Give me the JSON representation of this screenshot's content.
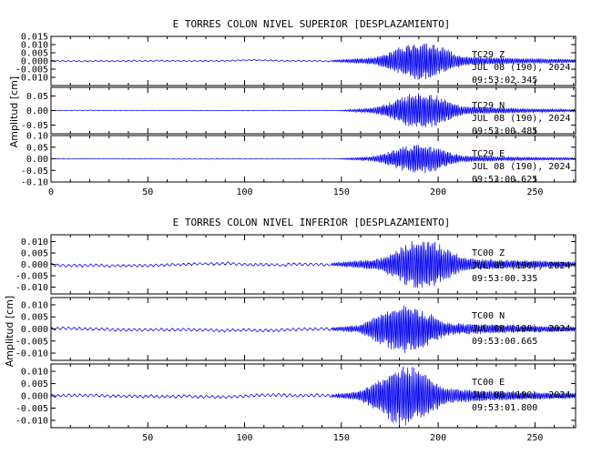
{
  "chart_data": [
    {
      "type": "line",
      "title": "E TORRES COLON NIVEL SUPERIOR [DESPLAZAMIENTO]",
      "ylabel": "Amplitud  [cm]",
      "xlim": [
        0,
        271
      ],
      "x_ticks": [
        "0",
        "50",
        "100",
        "150",
        "200",
        "250"
      ],
      "panels": [
        {
          "station": "TC29",
          "component": "Z",
          "date": "JUL 08 (190), 2024",
          "time": "09:53:02.345",
          "ylim": [
            -0.015,
            0.015
          ],
          "y_ticks": [
            "0.015",
            "0.010",
            "0.005",
            "0.000",
            "-0.005",
            "-0.010"
          ],
          "pre_amp": 0.0004,
          "motion_amp": 0.012,
          "motion_onset": 145,
          "peak_time": 191
        },
        {
          "station": "TC29",
          "component": "N",
          "date": "JUL 08 (190), 2024",
          "time": "09:53:00.485",
          "ylim": [
            -0.08,
            0.08
          ],
          "y_ticks": [
            "0.05",
            "0.00",
            "-0.05"
          ],
          "pre_amp": 0.0008,
          "motion_amp": 0.065,
          "motion_onset": 148,
          "peak_time": 191
        },
        {
          "station": "TC29",
          "component": "E",
          "date": "JUL 08 (190), 2024",
          "time": "09:53:00.625",
          "ylim": [
            -0.1,
            0.1
          ],
          "y_ticks": [
            "0.10",
            "0.05",
            "0.00",
            "-0.05",
            "-0.10"
          ],
          "pre_amp": 0.001,
          "motion_amp": 0.065,
          "motion_onset": 148,
          "peak_time": 190
        }
      ]
    },
    {
      "type": "line",
      "title": "E TORRES COLON NIVEL INFERIOR [DESPLAZAMIENTO]",
      "ylabel": "Amplitud  [cm]",
      "xlim": [
        0,
        271
      ],
      "x_ticks": [
        "50",
        "100",
        "150",
        "200",
        "250"
      ],
      "panels": [
        {
          "station": "TC00",
          "component": "Z",
          "date": "JUL 08 (190), 2024",
          "time": "09:53:00.335",
          "ylim": [
            -0.013,
            0.013
          ],
          "y_ticks": [
            "0.010",
            "0.005",
            "0.000",
            "-0.005",
            "-0.010"
          ],
          "pre_amp": 0.0006,
          "motion_amp": 0.011,
          "motion_onset": 145,
          "peak_time": 192
        },
        {
          "station": "TC00",
          "component": "N",
          "date": "JUL 08 (190), 2024",
          "time": "09:53:00.665",
          "ylim": [
            -0.013,
            0.013
          ],
          "y_ticks": [
            "0.010",
            "0.005",
            "0.000",
            "-0.005",
            "-0.010"
          ],
          "pre_amp": 0.0006,
          "motion_amp": 0.01,
          "motion_onset": 145,
          "peak_time": 183
        },
        {
          "station": "TC00",
          "component": "E",
          "date": "JUL 08 (190), 2024",
          "time": "09:53:01.800",
          "ylim": [
            -0.013,
            0.013
          ],
          "y_ticks": [
            "0.010",
            "0.005",
            "0.000",
            "-0.005",
            "-0.010"
          ],
          "pre_amp": 0.0006,
          "motion_amp": 0.012,
          "motion_onset": 145,
          "peak_time": 183
        }
      ]
    }
  ],
  "colors": {
    "trace": "#0000ee",
    "axes": "#000000",
    "background": "#ffffff"
  }
}
